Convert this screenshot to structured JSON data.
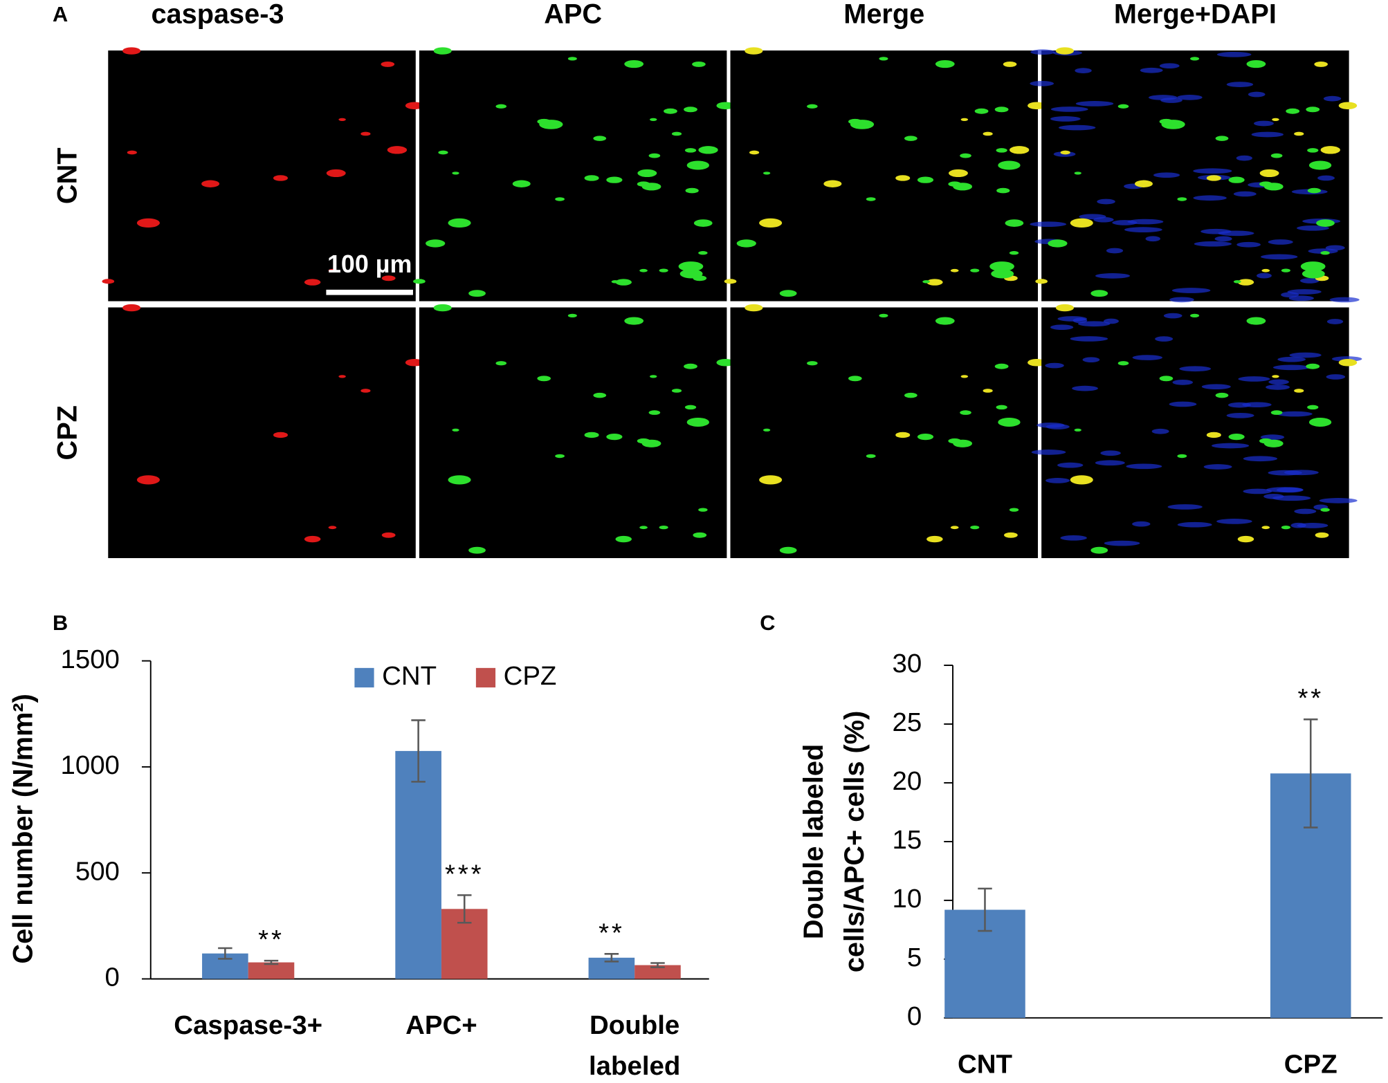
{
  "panel_a": {
    "label": "A",
    "columns": [
      "caspase-3",
      "APC",
      "Merge",
      "Merge+DAPI"
    ],
    "rows": [
      "CNT",
      "CPZ"
    ],
    "scale_bar": "100 µm"
  },
  "chart_data": [
    {
      "type": "bar",
      "panel_label": "B",
      "ylabel": "Cell number (N/mm²)",
      "categories": [
        "Caspase-3+",
        "APC+",
        "Double labeled"
      ],
      "series": [
        {
          "name": "CNT",
          "color": "#4f81bd",
          "values": [
            120,
            1075,
            100
          ],
          "errors": [
            25,
            145,
            18
          ],
          "annotations": [
            null,
            null,
            "**"
          ]
        },
        {
          "name": "CPZ",
          "color": "#c0504d",
          "values": [
            78,
            330,
            65
          ],
          "errors": [
            8,
            65,
            10
          ],
          "annotations": [
            "**",
            "***",
            null
          ]
        }
      ],
      "ylim": [
        0,
        1500
      ],
      "yticks": [
        0,
        500,
        1000,
        1500
      ],
      "legend": "top"
    },
    {
      "type": "bar",
      "panel_label": "C",
      "ylabel": [
        "Double labeled",
        "cells/APC+ cells (%)"
      ],
      "categories": [
        "CNT",
        "CPZ"
      ],
      "series": [
        {
          "color": "#4f81bd",
          "values": [
            9.2,
            20.8
          ],
          "errors": [
            1.8,
            4.6
          ],
          "annotations": [
            null,
            "**"
          ]
        }
      ],
      "ylim": [
        0,
        30
      ],
      "yticks": [
        0,
        5,
        10,
        15,
        20,
        25,
        30
      ]
    }
  ]
}
